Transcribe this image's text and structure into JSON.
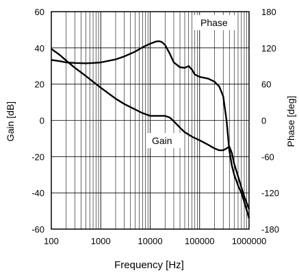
{
  "chart_data": {
    "type": "line",
    "title": "",
    "xlabel": "Frequency [Hz]",
    "ylabel_left": "Gain [dB]",
    "ylabel_right": "Phase [deg]",
    "x_scale": "log",
    "xlim": [
      100,
      1000000
    ],
    "ylim_left": [
      -60,
      60
    ],
    "ylim_right": [
      -180,
      180
    ],
    "grid": true,
    "x_ticks": [
      "100",
      "1000",
      "10000",
      "100000",
      "1000000"
    ],
    "y_left_ticks": [
      "60",
      "40",
      "20",
      "0",
      "-20",
      "-40",
      "-60"
    ],
    "y_right_ticks": [
      "180",
      "120",
      "60",
      "0",
      "-60",
      "-120",
      "-180"
    ],
    "annotations": {
      "phase": "Phase",
      "gain": "Gain"
    },
    "series": [
      {
        "name": "Gain",
        "axis": "left",
        "x": [
          100,
          150,
          200,
          300,
          500,
          1000,
          2000,
          3000,
          5000,
          7000,
          10000,
          15000,
          20000,
          25000,
          30000,
          40000,
          50000,
          70000,
          100000,
          150000,
          200000,
          250000,
          300000,
          350000,
          400000,
          450000,
          500000,
          600000,
          700000,
          800000,
          1000000
        ],
        "y": [
          39.5,
          36,
          33,
          29,
          24.5,
          18,
          12,
          9,
          6,
          4,
          2.5,
          2.5,
          2.5,
          1.5,
          -0.5,
          -4,
          -6.5,
          -9,
          -11,
          -13.5,
          -15.5,
          -16.5,
          -16.5,
          -15.5,
          -14.5,
          -18,
          -24,
          -31,
          -37,
          -42,
          -49
        ]
      },
      {
        "name": "Phase",
        "axis": "right",
        "x": [
          100,
          150,
          200,
          300,
          500,
          700,
          1000,
          2000,
          3000,
          5000,
          7000,
          10000,
          13000,
          15000,
          17000,
          20000,
          25000,
          30000,
          40000,
          50000,
          60000,
          70000,
          80000,
          100000,
          150000,
          200000,
          250000,
          300000,
          350000,
          400000,
          450000,
          500000,
          600000,
          700000,
          800000,
          1000000
        ],
        "y": [
          100,
          98,
          96,
          95,
          94.5,
          95,
          96,
          101,
          106,
          114,
          121,
          127,
          130.5,
          131,
          130,
          125,
          110,
          96,
          88,
          87,
          90,
          84,
          76,
          72,
          69,
          64,
          56,
          40,
          0,
          -50,
          -75,
          -90,
          -108,
          -120,
          -135,
          -162
        ]
      }
    ]
  }
}
